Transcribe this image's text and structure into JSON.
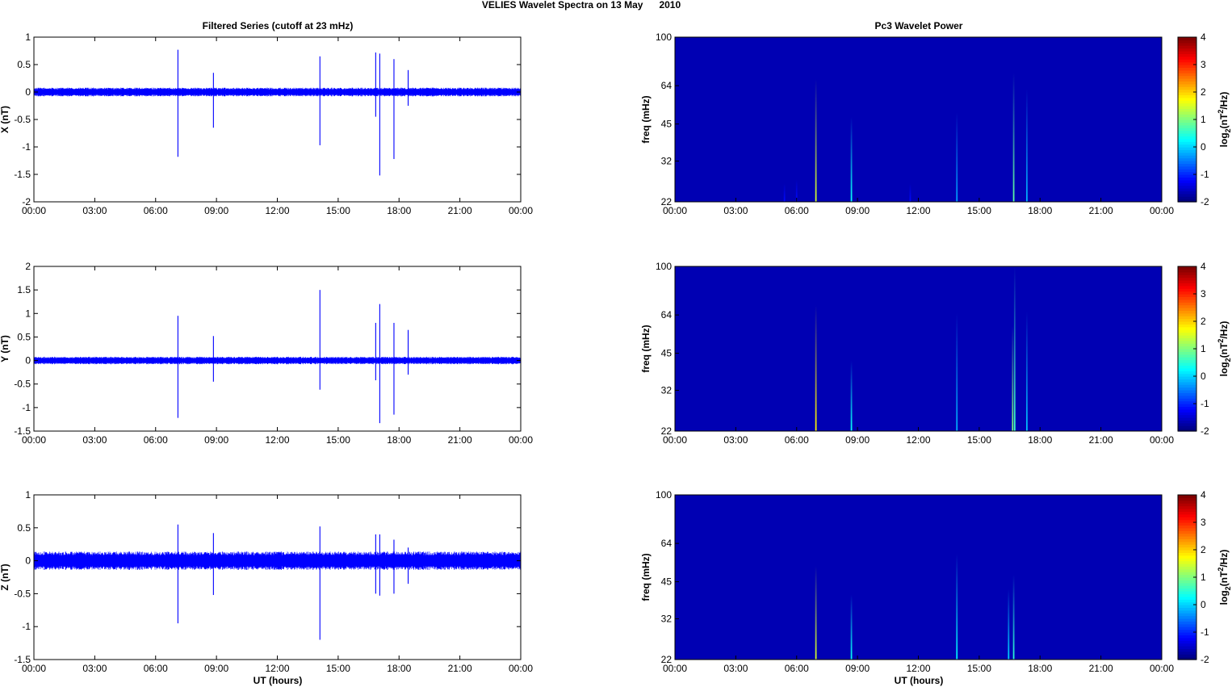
{
  "figure": {
    "suptitle": "VELIES Wavelet Spectra on 13 May      2010",
    "left_title": "Filtered Series (cutoff at 23 mHz)",
    "right_title": "Pc3 Wavelet Power",
    "xlabel": "UT (hours)"
  },
  "colors": {
    "trace": "#0000ff",
    "background_power": "#00008f",
    "axis": "#000000"
  },
  "chart_data": [
    {
      "type": "line",
      "panel": "X",
      "ylabel": "X (nT)",
      "x_unit": "hours UT",
      "xlim": [
        0,
        24
      ],
      "ylim": [
        -2,
        1
      ],
      "xticks": [
        "00:00",
        "03:00",
        "06:00",
        "09:00",
        "12:00",
        "15:00",
        "18:00",
        "21:00",
        "00:00"
      ],
      "yticks": [
        "1",
        "0.5",
        "0",
        "-0.5",
        "-1",
        "-1.5",
        "-2"
      ],
      "noise_amplitude_nT": 0.08,
      "spikes": [
        {
          "t": 7.1,
          "max": 0.77,
          "min": -1.18
        },
        {
          "t": 8.85,
          "max": 0.35,
          "min": -0.65
        },
        {
          "t": 14.1,
          "max": 0.65,
          "min": -0.97
        },
        {
          "t": 16.85,
          "max": 0.72,
          "min": -0.45
        },
        {
          "t": 17.05,
          "max": 0.7,
          "min": -1.52
        },
        {
          "t": 17.75,
          "max": 0.6,
          "min": -1.22
        },
        {
          "t": 18.45,
          "max": 0.4,
          "min": -0.25
        }
      ]
    },
    {
      "type": "line",
      "panel": "Y",
      "ylabel": "Y (nT)",
      "x_unit": "hours UT",
      "xlim": [
        0,
        24
      ],
      "ylim": [
        -1.5,
        2
      ],
      "xticks": [
        "00:00",
        "03:00",
        "06:00",
        "09:00",
        "12:00",
        "15:00",
        "18:00",
        "21:00",
        "00:00"
      ],
      "yticks": [
        "2",
        "1.5",
        "1",
        "0.5",
        "0",
        "-0.5",
        "-1",
        "-1.5"
      ],
      "noise_amplitude_nT": 0.08,
      "spikes": [
        {
          "t": 7.1,
          "max": 0.95,
          "min": -1.22
        },
        {
          "t": 8.85,
          "max": 0.52,
          "min": -0.45
        },
        {
          "t": 14.1,
          "max": 1.5,
          "min": -0.62
        },
        {
          "t": 16.85,
          "max": 0.8,
          "min": -0.42
        },
        {
          "t": 17.05,
          "max": 1.2,
          "min": -1.33
        },
        {
          "t": 17.75,
          "max": 0.8,
          "min": -1.15
        },
        {
          "t": 18.45,
          "max": 0.65,
          "min": -0.3
        }
      ]
    },
    {
      "type": "line",
      "panel": "Z",
      "ylabel": "Z (nT)",
      "x_unit": "hours UT",
      "xlim": [
        0,
        24
      ],
      "ylim": [
        -1.5,
        1
      ],
      "xticks": [
        "00:00",
        "03:00",
        "06:00",
        "09:00",
        "12:00",
        "15:00",
        "18:00",
        "21:00",
        "00:00"
      ],
      "yticks": [
        "1",
        "0.5",
        "0",
        "-0.5",
        "-1",
        "-1.5"
      ],
      "noise_amplitude_nT": 0.14,
      "spikes": [
        {
          "t": 7.1,
          "max": 0.55,
          "min": -0.95
        },
        {
          "t": 8.85,
          "max": 0.42,
          "min": -0.52
        },
        {
          "t": 14.1,
          "max": 0.52,
          "min": -1.2
        },
        {
          "t": 16.85,
          "max": 0.4,
          "min": -0.5
        },
        {
          "t": 17.05,
          "max": 0.4,
          "min": -0.53
        },
        {
          "t": 17.75,
          "max": 0.32,
          "min": -0.5
        },
        {
          "t": 18.45,
          "max": 0.2,
          "min": -0.35
        }
      ]
    },
    {
      "type": "heatmap",
      "panel": "X power",
      "ylabel": "freq (mHz)",
      "x_unit": "hours UT",
      "xlim": [
        0,
        24
      ],
      "ylim": [
        22,
        100
      ],
      "yscale": "log",
      "yticks": [
        100,
        64,
        45,
        32,
        22
      ],
      "xticks": [
        "00:00",
        "03:00",
        "06:00",
        "09:00",
        "12:00",
        "15:00",
        "18:00",
        "21:00",
        "00:00"
      ],
      "colorbar": {
        "label": "log2(nT^2/Hz)",
        "range": [
          -2,
          4
        ],
        "ticks": [
          "4",
          "3",
          "2",
          "1",
          "0",
          "-1",
          "-2"
        ]
      },
      "background_level": -1.7,
      "streaks": [
        {
          "t": 5.4,
          "fmax": 26,
          "level": -1.2
        },
        {
          "t": 6.0,
          "fmax": 27,
          "level": -1.2
        },
        {
          "t": 6.95,
          "fmax": 68,
          "level": 1.5
        },
        {
          "t": 8.7,
          "fmax": 48,
          "level": 0.3
        },
        {
          "t": 11.6,
          "fmax": 26,
          "level": -1.2
        },
        {
          "t": 13.9,
          "fmax": 50,
          "level": -0.3
        },
        {
          "t": 16.7,
          "fmax": 72,
          "level": 0.8
        },
        {
          "t": 17.35,
          "fmax": 62,
          "level": -0.2
        }
      ]
    },
    {
      "type": "heatmap",
      "panel": "Y power",
      "ylabel": "freq (mHz)",
      "x_unit": "hours UT",
      "xlim": [
        0,
        24
      ],
      "ylim": [
        22,
        100
      ],
      "yscale": "log",
      "yticks": [
        100,
        64,
        45,
        32,
        22
      ],
      "xticks": [
        "00:00",
        "03:00",
        "06:00",
        "09:00",
        "12:00",
        "15:00",
        "18:00",
        "21:00",
        "00:00"
      ],
      "colorbar": {
        "label": "log2(nT^2/Hz)",
        "range": [
          -2,
          4
        ],
        "ticks": [
          "4",
          "3",
          "2",
          "1",
          "0",
          "-1",
          "-2"
        ]
      },
      "background_level": -1.7,
      "streaks": [
        {
          "t": 6.95,
          "fmax": 70,
          "level": 1.8
        },
        {
          "t": 8.7,
          "fmax": 42,
          "level": 0.3
        },
        {
          "t": 13.9,
          "fmax": 65,
          "level": -0.2
        },
        {
          "t": 16.65,
          "fmax": 58,
          "level": 1.0
        },
        {
          "t": 16.75,
          "fmax": 100,
          "level": 0.6
        },
        {
          "t": 17.35,
          "fmax": 66,
          "level": -0.1
        }
      ]
    },
    {
      "type": "heatmap",
      "panel": "Z power",
      "ylabel": "freq (mHz)",
      "x_unit": "hours UT",
      "xlim": [
        0,
        24
      ],
      "ylim": [
        22,
        100
      ],
      "yscale": "log",
      "yticks": [
        100,
        64,
        45,
        32,
        22
      ],
      "xticks": [
        "00:00",
        "03:00",
        "06:00",
        "09:00",
        "12:00",
        "15:00",
        "18:00",
        "21:00",
        "00:00"
      ],
      "colorbar": {
        "label": "log2(nT^2/Hz)",
        "range": [
          -2,
          4
        ],
        "ticks": [
          "4",
          "3",
          "2",
          "1",
          "0",
          "-1",
          "-2"
        ]
      },
      "background_level": -1.7,
      "streaks": [
        {
          "t": 6.95,
          "fmax": 52,
          "level": 1.5
        },
        {
          "t": 8.7,
          "fmax": 40,
          "level": 0.3
        },
        {
          "t": 13.9,
          "fmax": 58,
          "level": 0.2
        },
        {
          "t": 16.45,
          "fmax": 42,
          "level": 0.0
        },
        {
          "t": 16.7,
          "fmax": 48,
          "level": 0.5
        }
      ]
    }
  ]
}
